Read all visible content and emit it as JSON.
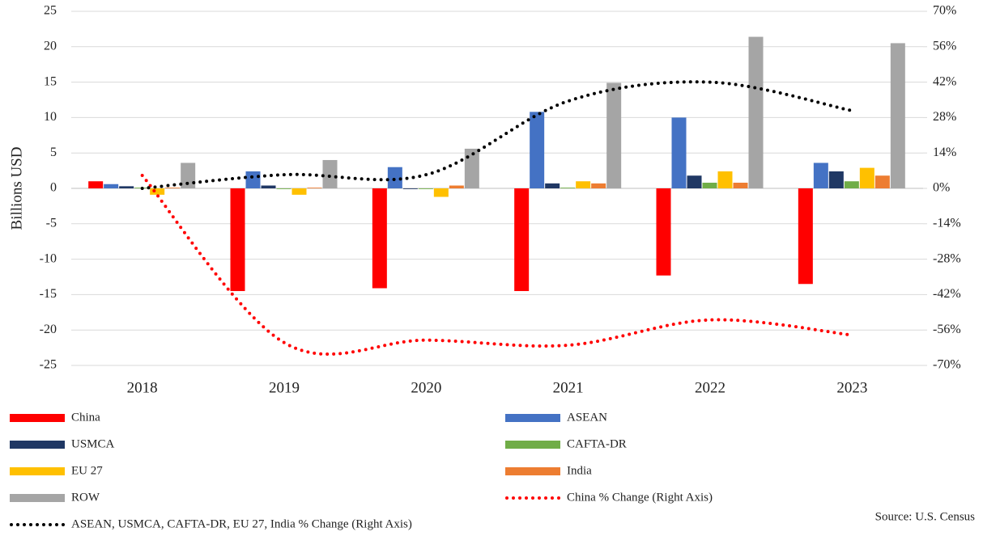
{
  "chart_data": {
    "type": "bar",
    "y_label": "Billions USD",
    "source": "Source: U.S. Census",
    "categories": [
      "2018",
      "2019",
      "2020",
      "2021",
      "2022",
      "2023"
    ],
    "ylim": [
      -25,
      25
    ],
    "yticks": [
      -25,
      -20,
      -15,
      -10,
      -5,
      0,
      5,
      10,
      15,
      20,
      25
    ],
    "y2lim": [
      -70,
      70
    ],
    "y2ticks": [
      {
        "value": -70,
        "label": "-70%"
      },
      {
        "value": -56,
        "label": "-56%"
      },
      {
        "value": -42,
        "label": "-42%"
      },
      {
        "value": -28,
        "label": "-28%"
      },
      {
        "value": -14,
        "label": "-14%"
      },
      {
        "value": 0,
        "label": "0%"
      },
      {
        "value": 14,
        "label": "14%"
      },
      {
        "value": 28,
        "label": "28%"
      },
      {
        "value": 42,
        "label": "42%"
      },
      {
        "value": 56,
        "label": "56%"
      },
      {
        "value": 70,
        "label": "70%"
      }
    ],
    "grid": true,
    "series": [
      {
        "name": "China",
        "type": "bar",
        "color": "#ff0000",
        "values": [
          1.0,
          -14.5,
          -14.1,
          -14.5,
          -12.3,
          -13.5
        ]
      },
      {
        "name": "ASEAN",
        "type": "bar",
        "color": "#4472c4",
        "values": [
          0.6,
          2.4,
          3.0,
          10.8,
          10.0,
          3.6
        ]
      },
      {
        "name": "USMCA",
        "type": "bar",
        "color": "#203864",
        "values": [
          0.3,
          0.4,
          -0.1,
          0.7,
          1.8,
          2.4
        ]
      },
      {
        "name": "CAFTA-DR",
        "type": "bar",
        "color": "#70ad47",
        "values": [
          0.1,
          -0.1,
          -0.1,
          0.1,
          0.8,
          1.0
        ]
      },
      {
        "name": "EU 27",
        "type": "bar",
        "color": "#ffc000",
        "values": [
          -0.9,
          -0.9,
          -1.2,
          1.0,
          2.4,
          2.9
        ]
      },
      {
        "name": "India",
        "type": "bar",
        "color": "#ed7d31",
        "values": [
          0.1,
          0.1,
          0.4,
          0.7,
          0.8,
          1.8
        ]
      },
      {
        "name": "ROW",
        "type": "bar",
        "color": "#a5a5a5",
        "values": [
          3.6,
          4.0,
          5.6,
          14.9,
          21.4,
          20.5
        ]
      },
      {
        "name": "China % Change (Right Axis)",
        "type": "line",
        "axis": "y2",
        "color": "#ff0000",
        "values": [
          5.1,
          -61,
          -60,
          -62,
          -52,
          -58
        ]
      },
      {
        "name": "ASEAN, USMCA, CAFTA-DR, EU 27, India % Change (Right Axis)",
        "type": "line",
        "axis": "y2",
        "color": "#000000",
        "values": [
          0,
          5.4,
          5.4,
          34.5,
          42,
          30.7
        ]
      }
    ]
  }
}
